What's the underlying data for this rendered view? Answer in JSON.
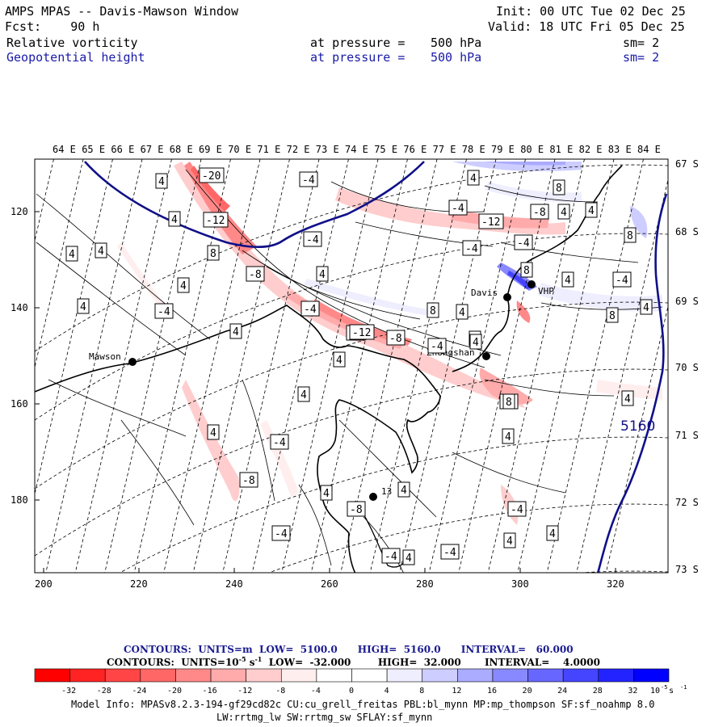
{
  "header": {
    "title": "AMPS MPAS -- Davis-Mawson Window",
    "fcst": "Fcst:    90 h",
    "init": "Init: 00 UTC Tue 02 Dec 25",
    "valid": "Valid: 18 UTC Fri 05 Dec 25",
    "field1": {
      "name": "Relative vorticity",
      "level_label": "at pressure =",
      "level": "500 hPa",
      "sm": "sm= 2"
    },
    "field2": {
      "name": "Geopotential height",
      "level_label": "at pressure =",
      "level": "500 hPa",
      "sm": "sm= 2"
    }
  },
  "map": {
    "top_lon_labels": [
      "64 E",
      "65 E",
      "66 E",
      "67 E",
      "68 E",
      "69 E",
      "70 E",
      "71 E",
      "72 E",
      "73 E",
      "74 E",
      "75 E",
      "76 E",
      "77 E",
      "78 E",
      "79 E",
      "80 E",
      "81 E",
      "82 E",
      "83 E",
      "84 E"
    ],
    "right_lat_labels": [
      "67 S",
      "68 S",
      "69 S",
      "70 S",
      "71 S",
      "72 S",
      "73 S"
    ],
    "bottom_ticks": [
      "200",
      "220",
      "240",
      "260",
      "280",
      "300",
      "320"
    ],
    "left_ticks": [
      "120",
      "140",
      "160",
      "180"
    ],
    "stations": [
      {
        "name": "Mawson"
      },
      {
        "name": "Davis"
      },
      {
        "name": "VHP"
      },
      {
        "name": "Zhongshan"
      },
      {
        "name": "13"
      }
    ],
    "vorticity_labels": [
      "-20",
      "-12",
      "-4",
      "4",
      "4",
      "8",
      "-8",
      "4",
      "4",
      "4",
      "-4",
      "4",
      "-4",
      "-4",
      "4",
      "8",
      "-4",
      "-12",
      "-4",
      "-8",
      "4",
      "8",
      "4",
      "-4",
      "4",
      "-4",
      "4",
      "8",
      "4",
      "-12",
      "-8",
      "8",
      "4",
      "4",
      "4",
      "4",
      "-8",
      "4",
      "-4",
      "-4",
      "-8",
      "4",
      "-8",
      "-4",
      "4",
      "-4",
      "4",
      "-4",
      "4",
      "4",
      "8",
      "-4",
      "4",
      "-4",
      "4",
      "4",
      "8",
      "4",
      "4"
    ],
    "height_label": "5160",
    "colors": {
      "neg": "#ff0000",
      "pos": "#0000ff",
      "height_contour": "#101088",
      "coast": "#000000"
    }
  },
  "legend": {
    "contours1": "CONTOURS:  UNITS=m  LOW=  5100.0      HIGH=  5160.0      INTERVAL=   60.000",
    "contours2": "CONTOURS:  UNITS=10",
    "contours2b": "-5",
    "contours2c": " s",
    "contours2d": "-1",
    "contours2e": "  LOW=  -32.000        HIGH=  32.000       INTERVAL=    4.0000",
    "bar_values": [
      "-32",
      "-28",
      "-24",
      "-20",
      "-16",
      "-12",
      "-8",
      "-4",
      "0",
      "4",
      "8",
      "12",
      "16",
      "20",
      "24",
      "28",
      "32"
    ],
    "bar_colors": [
      "#ff0000",
      "#ff2323",
      "#ff4545",
      "#ff6767",
      "#ff8989",
      "#ffabab",
      "#ffcdcd",
      "#ffeeee",
      "#ffffff",
      "#ffffff",
      "#eeeeff",
      "#cdcdff",
      "#ababff",
      "#8989ff",
      "#6767ff",
      "#4545ff",
      "#2323ff",
      "#0000ff"
    ],
    "unit": "10",
    "unit_exp": "-5",
    "unit_s": " s",
    "unit_exp2": "-1"
  },
  "footer": {
    "line1": "Model Info: MPASv8.2.3-194-gf29cd82c CU:cu_grell_freitas PBL:bl_mynn MP:mp_thompson SF:sf_noahmp 8.0",
    "line2": "LW:rrtmg_lw SW:rrtmg_sw SFLAY:sf_mynn"
  }
}
